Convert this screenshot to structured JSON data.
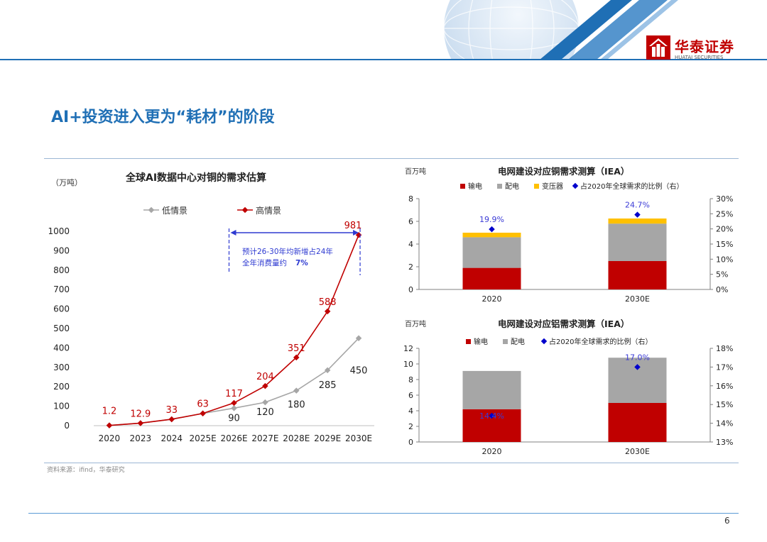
{
  "header": {
    "logo_cn": "华泰证券",
    "logo_en": "HUATAI SECURITIES"
  },
  "page_title": "AI+投资进入更为“耗材”的阶段",
  "source": "资料来源：ifind，华泰研究",
  "page_number": "6",
  "colors": {
    "blue": "#1f6fb5",
    "red": "#c00000",
    "grey": "#a6a6a6",
    "yellow": "#ffc000",
    "marker": "#0000cc"
  },
  "chart_data": [
    {
      "type": "line",
      "title": "全球AI数据中心对铜的需求估算",
      "ylabel": "（万吨）",
      "categories": [
        "2020",
        "2023",
        "2024",
        "2025E",
        "2026E",
        "2027E",
        "2028E",
        "2029E",
        "2030E"
      ],
      "ylim": [
        0,
        1000
      ],
      "yticks": [
        0,
        100,
        200,
        300,
        400,
        500,
        600,
        700,
        800,
        900,
        1000
      ],
      "series": [
        {
          "name": "低情景",
          "values": [
            1.2,
            12.9,
            33,
            63,
            90,
            120,
            180,
            285,
            450
          ],
          "labels": [
            "",
            "",
            "",
            "",
            "90",
            "120",
            "180",
            "285",
            "450"
          ]
        },
        {
          "name": "高情景",
          "values": [
            1.2,
            12.9,
            33,
            63,
            117,
            204,
            351,
            588,
            981
          ],
          "labels": [
            "1.2",
            "12.9",
            "33",
            "63",
            "117",
            "204",
            "351",
            "588",
            "981"
          ]
        }
      ],
      "annotation": {
        "line1": "预计26-30年均新增占24年",
        "line2": "全年消费量约",
        "highlight": "7%"
      },
      "legend": "top",
      "grid": false
    },
    {
      "type": "bar",
      "title": "电网建设对应铜需求测算（IEA）",
      "ylabel": "百万吨",
      "categories": [
        "2020",
        "2030E"
      ],
      "ylim": [
        0,
        8
      ],
      "yticks": [
        0,
        2,
        4,
        6,
        8
      ],
      "y2lim": [
        0,
        30
      ],
      "y2ticks": [
        "0%",
        "5%",
        "10%",
        "15%",
        "20%",
        "25%",
        "30%"
      ],
      "series": [
        {
          "name": "输电",
          "values": [
            1.9,
            2.5
          ]
        },
        {
          "name": "配电",
          "values": [
            2.7,
            3.3
          ]
        },
        {
          "name": "变压器",
          "values": [
            0.4,
            0.45
          ]
        }
      ],
      "ratio": {
        "name": "占2020年全球需求的比例（右）",
        "values": [
          19.9,
          24.7
        ],
        "labels": [
          "19.9%",
          "24.7%"
        ]
      },
      "legend": "top"
    },
    {
      "type": "bar",
      "title": "电网建设对应铝需求测算（IEA）",
      "ylabel": "百万吨",
      "categories": [
        "2020",
        "2030E"
      ],
      "ylim": [
        0,
        12
      ],
      "yticks": [
        0,
        2,
        4,
        6,
        8,
        10,
        12
      ],
      "y2lim": [
        13,
        18
      ],
      "y2ticks": [
        "13%",
        "14%",
        "15%",
        "16%",
        "17%",
        "18%"
      ],
      "series": [
        {
          "name": "输电",
          "values": [
            4.2,
            5.0
          ]
        },
        {
          "name": "配电",
          "values": [
            4.9,
            5.8
          ]
        }
      ],
      "ratio": {
        "name": "占2020年全球需求的比例（右）",
        "values": [
          14.4,
          17.0
        ],
        "labels": [
          "14.4%",
          "17.0%"
        ]
      },
      "legend": "top"
    }
  ]
}
